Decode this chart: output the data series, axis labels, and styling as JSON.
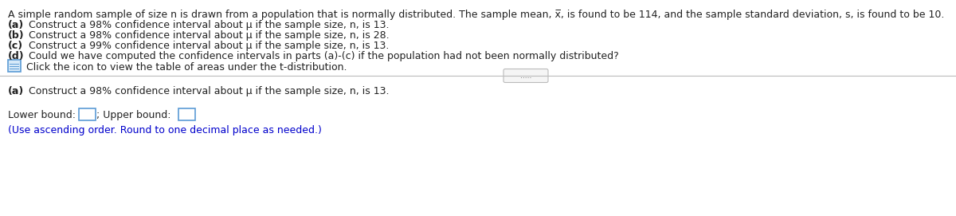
{
  "background_color": "#ffffff",
  "intro_prefix": "A simple random sample of size n is drawn from a population that is normally distributed. The sample mean, ",
  "intro_xbar": "x̅",
  "intro_suffix": ", is found to be 114, and the sample standard deviation, s, is found to be 10.",
  "line_a": " Construct a 98% confidence interval about μ if the sample size, n, is 13.",
  "line_b": " Construct a 98% confidence interval about μ if the sample size, n, is 28.",
  "line_c": " Construct a 99% confidence interval about μ if the sample size, n, is 13.",
  "line_d": " Could we have computed the confidence intervals in parts (a)-(c) if the population had not been normally distributed?",
  "bold_a": "(a)",
  "bold_b": "(b)",
  "bold_c": "(c)",
  "bold_d": "(d)",
  "click_text": " Click the icon to view the table of areas under the t-distribution.",
  "section_a_bold": "(a)",
  "section_a_rest": " Construct a 98% confidence interval about μ if the sample size, n, is 13.",
  "lower_bound_label": "Lower bound: ",
  "semicolon": "; ",
  "upper_bound_label": "Upper bound: ",
  "hint_text": "(Use ascending order. Round to one decimal place as needed.)",
  "hint_color": "#0000cc",
  "dots_button_text": ".....",
  "font_size_main": 9.0,
  "font_size_bold": 9.0,
  "font_size_hint": 9.0,
  "text_color": "#222222",
  "divider_color": "#bbbbbb",
  "icon_edge_color": "#5b9bd5",
  "icon_face_color": "#d6e9f8",
  "box_edge_color": "#5b9bd5",
  "box_face_color": "#ffffff",
  "btn_edge_color": "#bbbbbb",
  "btn_face_color": "#f5f5f5",
  "btn_text_color": "#555555"
}
